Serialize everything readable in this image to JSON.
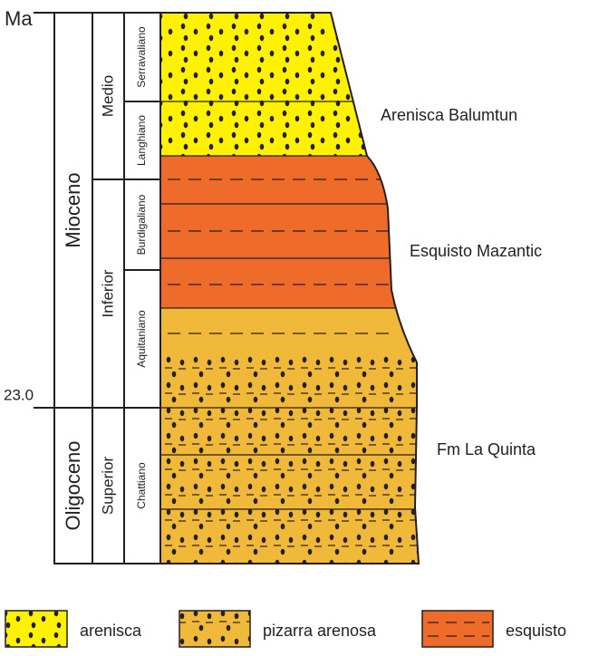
{
  "axis": {
    "unit": "Ma",
    "boundary": "23.0"
  },
  "epochs": [
    "Mioceno",
    "Oligoceno"
  ],
  "subepochs": [
    "Medio",
    "Inferior",
    "Superior"
  ],
  "stages": [
    "Serravaliano",
    "Langhiano",
    "Burdigaliano",
    "Aquitaniano",
    "Chattiano"
  ],
  "formations": [
    "Arenisca Balumtun",
    "Esquisto Mazantic",
    "Fm La Quinta"
  ],
  "legend": [
    "arenisca",
    "pizarra arenosa",
    "esquisto"
  ]
}
